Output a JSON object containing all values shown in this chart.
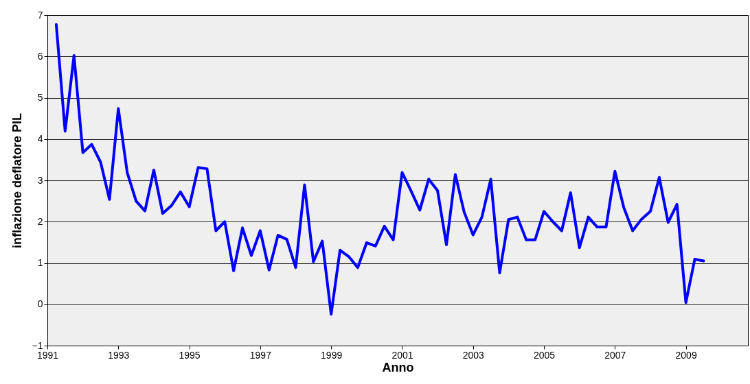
{
  "chart_data": {
    "type": "line",
    "xlabel": "Anno",
    "ylabel": "inflazione deflatore PIL",
    "x": [
      1991.25,
      1991.5,
      1991.75,
      1992,
      1992.25,
      1992.5,
      1992.75,
      1993,
      1993.25,
      1993.5,
      1993.75,
      1994,
      1994.25,
      1994.5,
      1994.75,
      1995,
      1995.25,
      1995.5,
      1995.75,
      1996,
      1996.25,
      1996.5,
      1996.75,
      1997,
      1997.25,
      1997.5,
      1997.75,
      1998,
      1998.25,
      1998.5,
      1998.75,
      1999,
      1999.25,
      1999.5,
      1999.75,
      2000,
      2000.25,
      2000.5,
      2000.75,
      2001,
      2001.25,
      2001.5,
      2001.75,
      2002,
      2002.25,
      2002.5,
      2002.75,
      2003,
      2003.25,
      2003.5,
      2003.75,
      2004,
      2004.25,
      2004.5,
      2004.75,
      2005,
      2005.25,
      2005.5,
      2005.75,
      2006,
      2006.25,
      2006.5,
      2006.75,
      2007,
      2007.25,
      2007.5,
      2007.75,
      2008,
      2008.25,
      2008.5,
      2008.75,
      2009,
      2009.25,
      2009.5
    ],
    "series": [
      {
        "color": "#0000ff",
        "values": [
          6.77,
          4.19,
          6.02,
          3.67,
          3.87,
          3.44,
          2.54,
          4.74,
          3.19,
          2.5,
          2.26,
          3.25,
          2.2,
          2.39,
          2.72,
          2.36,
          3.31,
          3.28,
          1.78,
          2.0,
          0.81,
          1.85,
          1.18,
          1.78,
          0.83,
          1.67,
          1.57,
          0.89,
          2.89,
          1.03,
          1.53,
          -0.24,
          1.31,
          1.15,
          0.89,
          1.49,
          1.41,
          1.89,
          1.56,
          3.19,
          2.75,
          2.28,
          3.03,
          2.75,
          1.44,
          3.14,
          2.23,
          1.68,
          2.11,
          3.03,
          0.76,
          2.05,
          2.11,
          1.56,
          1.56,
          2.25,
          2.0,
          1.78,
          2.7,
          1.37,
          2.11,
          1.87,
          1.87,
          3.22,
          2.34,
          1.78,
          2.06,
          2.25,
          3.07,
          1.98,
          2.42,
          0.04,
          1.09,
          1.05
        ]
      }
    ],
    "xlim": [
      1991,
      2010.75
    ],
    "xticks": [
      1991,
      1993,
      1995,
      1997,
      1999,
      2001,
      2003,
      2005,
      2007,
      2009
    ],
    "ylim": [
      -1,
      7
    ],
    "yticks": [
      -1,
      0,
      1,
      2,
      3,
      4,
      5,
      6,
      7
    ],
    "grid": "y",
    "marker": "none",
    "line_style": "solid"
  }
}
